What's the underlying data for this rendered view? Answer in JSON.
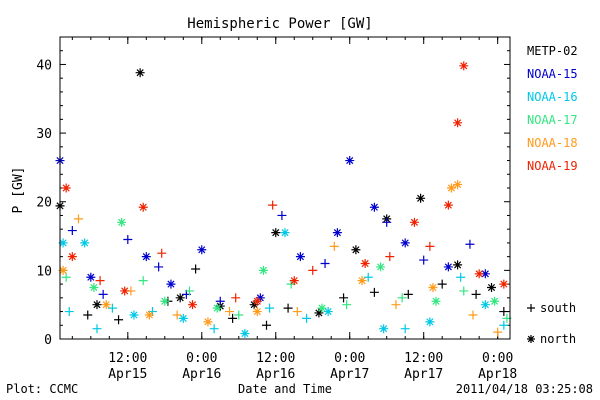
{
  "chart_data": {
    "type": "scatter",
    "title": "Hemispheric Power [GW]",
    "ylabel": "P [GW]",
    "xlabel": "Date and Time",
    "ylim": [
      0,
      44
    ],
    "xlim": [
      "2011-04-15 01:00",
      "2011-04-18 02:00"
    ],
    "y_ticks": [
      0,
      10,
      20,
      30,
      40
    ],
    "x_ticks": [
      {
        "time": "2011-04-15 12:00",
        "line1": "12:00",
        "line2": "Apr15"
      },
      {
        "time": "2011-04-16 00:00",
        "line1": "0:00",
        "line2": "Apr16"
      },
      {
        "time": "2011-04-16 12:00",
        "line1": "12:00",
        "line2": "Apr16"
      },
      {
        "time": "2011-04-17 00:00",
        "line1": "0:00",
        "line2": "Apr17"
      },
      {
        "time": "2011-04-17 12:00",
        "line1": "12:00",
        "line2": "Apr17"
      },
      {
        "time": "2011-04-18 00:00",
        "line1": "0:00",
        "line2": "Apr18"
      }
    ],
    "legend_position": "right",
    "symbol_legend": [
      {
        "symbol": "+",
        "label": "south"
      },
      {
        "symbol": "*",
        "label": "north"
      }
    ],
    "footer_left": "Plot: CCMC",
    "footer_right": "2011/04/18 03:25:08",
    "series": [
      {
        "name": "METP-02",
        "color": "#000000",
        "points": [
          {
            "t": "2011-04-15 01:00",
            "v": 19.4,
            "m": "*"
          },
          {
            "t": "2011-04-15 05:30",
            "v": 3.5,
            "m": "+"
          },
          {
            "t": "2011-04-15 07:00",
            "v": 5.0,
            "m": "*"
          },
          {
            "t": "2011-04-15 10:30",
            "v": 2.8,
            "m": "+"
          },
          {
            "t": "2011-04-15 14:00",
            "v": 38.8,
            "m": "*"
          },
          {
            "t": "2011-04-15 18:30",
            "v": 5.5,
            "m": "+"
          },
          {
            "t": "2011-04-15 20:30",
            "v": 6.0,
            "m": "*"
          },
          {
            "t": "2011-04-15 23:00",
            "v": 10.2,
            "m": "+"
          },
          {
            "t": "2011-04-16 03:00",
            "v": 4.8,
            "m": "*"
          },
          {
            "t": "2011-04-16 05:00",
            "v": 3.0,
            "m": "+"
          },
          {
            "t": "2011-04-16 08:30",
            "v": 5.0,
            "m": "*"
          },
          {
            "t": "2011-04-16 10:30",
            "v": 2.0,
            "m": "+"
          },
          {
            "t": "2011-04-16 12:00",
            "v": 15.5,
            "m": "*"
          },
          {
            "t": "2011-04-16 14:00",
            "v": 4.5,
            "m": "+"
          },
          {
            "t": "2011-04-16 19:00",
            "v": 3.8,
            "m": "*"
          },
          {
            "t": "2011-04-16 23:00",
            "v": 6.0,
            "m": "+"
          },
          {
            "t": "2011-04-17 01:00",
            "v": 13.0,
            "m": "*"
          },
          {
            "t": "2011-04-17 04:00",
            "v": 6.8,
            "m": "+"
          },
          {
            "t": "2011-04-17 06:00",
            "v": 17.5,
            "m": "*"
          },
          {
            "t": "2011-04-17 09:30",
            "v": 6.5,
            "m": "+"
          },
          {
            "t": "2011-04-17 11:30",
            "v": 20.5,
            "m": "*"
          },
          {
            "t": "2011-04-17 15:00",
            "v": 8.0,
            "m": "+"
          },
          {
            "t": "2011-04-17 17:30",
            "v": 10.8,
            "m": "*"
          },
          {
            "t": "2011-04-17 20:30",
            "v": 6.5,
            "m": "+"
          },
          {
            "t": "2011-04-17 23:00",
            "v": 7.5,
            "m": "*"
          },
          {
            "t": "2011-04-18 01:00",
            "v": 4.0,
            "m": "+"
          }
        ]
      },
      {
        "name": "NOAA-15",
        "color": "#0000cc",
        "points": [
          {
            "t": "2011-04-15 01:00",
            "v": 26.0,
            "m": "*"
          },
          {
            "t": "2011-04-15 03:00",
            "v": 15.8,
            "m": "+"
          },
          {
            "t": "2011-04-15 06:00",
            "v": 9.0,
            "m": "*"
          },
          {
            "t": "2011-04-15 08:00",
            "v": 6.5,
            "m": "+"
          },
          {
            "t": "2011-04-15 12:00",
            "v": 14.5,
            "m": "+"
          },
          {
            "t": "2011-04-15 15:00",
            "v": 12.0,
            "m": "*"
          },
          {
            "t": "2011-04-15 17:00",
            "v": 10.5,
            "m": "+"
          },
          {
            "t": "2011-04-15 19:00",
            "v": 8.0,
            "m": "*"
          },
          {
            "t": "2011-04-15 21:30",
            "v": 6.5,
            "m": "+"
          },
          {
            "t": "2011-04-16 00:00",
            "v": 13.0,
            "m": "*"
          },
          {
            "t": "2011-04-16 03:00",
            "v": 5.5,
            "m": "+"
          },
          {
            "t": "2011-04-16 09:30",
            "v": 6.0,
            "m": "*"
          },
          {
            "t": "2011-04-16 13:00",
            "v": 18.0,
            "m": "+"
          },
          {
            "t": "2011-04-16 16:00",
            "v": 12.0,
            "m": "*"
          },
          {
            "t": "2011-04-16 20:00",
            "v": 11.0,
            "m": "+"
          },
          {
            "t": "2011-04-16 22:00",
            "v": 15.5,
            "m": "*"
          },
          {
            "t": "2011-04-17 00:00",
            "v": 26.0,
            "m": "*"
          },
          {
            "t": "2011-04-17 04:00",
            "v": 19.2,
            "m": "*"
          },
          {
            "t": "2011-04-17 06:00",
            "v": 17.0,
            "m": "+"
          },
          {
            "t": "2011-04-17 09:00",
            "v": 14.0,
            "m": "*"
          },
          {
            "t": "2011-04-17 12:00",
            "v": 11.5,
            "m": "+"
          },
          {
            "t": "2011-04-17 16:00",
            "v": 10.5,
            "m": "*"
          },
          {
            "t": "2011-04-17 19:30",
            "v": 13.8,
            "m": "+"
          },
          {
            "t": "2011-04-17 22:00",
            "v": 9.5,
            "m": "*"
          }
        ]
      },
      {
        "name": "NOAA-16",
        "color": "#00c8e6",
        "points": [
          {
            "t": "2011-04-15 01:30",
            "v": 14.0,
            "m": "*"
          },
          {
            "t": "2011-04-15 02:30",
            "v": 4.0,
            "m": "+"
          },
          {
            "t": "2011-04-15 05:00",
            "v": 14.0,
            "m": "*"
          },
          {
            "t": "2011-04-15 07:00",
            "v": 1.5,
            "m": "+"
          },
          {
            "t": "2011-04-15 09:30",
            "v": 4.5,
            "m": "+"
          },
          {
            "t": "2011-04-15 13:00",
            "v": 3.5,
            "m": "*"
          },
          {
            "t": "2011-04-15 16:00",
            "v": 4.0,
            "m": "+"
          },
          {
            "t": "2011-04-15 21:00",
            "v": 3.0,
            "m": "*"
          },
          {
            "t": "2011-04-16 02:00",
            "v": 1.5,
            "m": "+"
          },
          {
            "t": "2011-04-16 07:00",
            "v": 0.8,
            "m": "*"
          },
          {
            "t": "2011-04-16 11:00",
            "v": 4.5,
            "m": "+"
          },
          {
            "t": "2011-04-16 13:30",
            "v": 15.5,
            "m": "*"
          },
          {
            "t": "2011-04-16 17:00",
            "v": 3.0,
            "m": "+"
          },
          {
            "t": "2011-04-16 20:30",
            "v": 4.0,
            "m": "*"
          },
          {
            "t": "2011-04-17 03:00",
            "v": 9.0,
            "m": "+"
          },
          {
            "t": "2011-04-17 05:30",
            "v": 1.5,
            "m": "*"
          },
          {
            "t": "2011-04-17 09:00",
            "v": 1.5,
            "m": "+"
          },
          {
            "t": "2011-04-17 13:00",
            "v": 2.5,
            "m": "*"
          },
          {
            "t": "2011-04-17 18:00",
            "v": 9.0,
            "m": "+"
          },
          {
            "t": "2011-04-17 22:00",
            "v": 5.0,
            "m": "*"
          },
          {
            "t": "2011-04-18 01:00",
            "v": 2.0,
            "m": "+"
          }
        ]
      },
      {
        "name": "NOAA-17",
        "color": "#33e680",
        "points": [
          {
            "t": "2011-04-15 02:00",
            "v": 9.0,
            "m": "+"
          },
          {
            "t": "2011-04-15 06:30",
            "v": 7.5,
            "m": "*"
          },
          {
            "t": "2011-04-15 11:00",
            "v": 17.0,
            "m": "*"
          },
          {
            "t": "2011-04-15 14:30",
            "v": 8.5,
            "m": "+"
          },
          {
            "t": "2011-04-15 18:00",
            "v": 5.5,
            "m": "*"
          },
          {
            "t": "2011-04-15 22:00",
            "v": 7.0,
            "m": "+"
          },
          {
            "t": "2011-04-16 02:30",
            "v": 4.5,
            "m": "*"
          },
          {
            "t": "2011-04-16 06:00",
            "v": 3.5,
            "m": "+"
          },
          {
            "t": "2011-04-16 10:00",
            "v": 10.0,
            "m": "*"
          },
          {
            "t": "2011-04-16 14:30",
            "v": 8.0,
            "m": "+"
          },
          {
            "t": "2011-04-16 19:30",
            "v": 4.5,
            "m": "*"
          },
          {
            "t": "2011-04-16 23:30",
            "v": 5.0,
            "m": "+"
          },
          {
            "t": "2011-04-17 05:00",
            "v": 10.5,
            "m": "*"
          },
          {
            "t": "2011-04-17 08:30",
            "v": 6.0,
            "m": "+"
          },
          {
            "t": "2011-04-17 14:00",
            "v": 5.5,
            "m": "*"
          },
          {
            "t": "2011-04-17 18:30",
            "v": 7.0,
            "m": "+"
          },
          {
            "t": "2011-04-17 23:30",
            "v": 5.5,
            "m": "*"
          },
          {
            "t": "2011-04-18 01:30",
            "v": 3.0,
            "m": "+"
          }
        ]
      },
      {
        "name": "NOAA-18",
        "color": "#ff9a1a",
        "points": [
          {
            "t": "2011-04-15 01:30",
            "v": 10.0,
            "m": "*"
          },
          {
            "t": "2011-04-15 04:00",
            "v": 17.5,
            "m": "+"
          },
          {
            "t": "2011-04-15 08:30",
            "v": 5.0,
            "m": "*"
          },
          {
            "t": "2011-04-15 12:30",
            "v": 7.0,
            "m": "+"
          },
          {
            "t": "2011-04-15 15:30",
            "v": 3.5,
            "m": "*"
          },
          {
            "t": "2011-04-15 20:00",
            "v": 3.5,
            "m": "+"
          },
          {
            "t": "2011-04-16 01:00",
            "v": 2.5,
            "m": "*"
          },
          {
            "t": "2011-04-16 04:30",
            "v": 4.0,
            "m": "+"
          },
          {
            "t": "2011-04-16 09:00",
            "v": 4.0,
            "m": "*"
          },
          {
            "t": "2011-04-16 15:30",
            "v": 4.0,
            "m": "+"
          },
          {
            "t": "2011-04-16 21:30",
            "v": 13.5,
            "m": "+"
          },
          {
            "t": "2011-04-17 02:00",
            "v": 8.5,
            "m": "*"
          },
          {
            "t": "2011-04-17 07:30",
            "v": 5.0,
            "m": "+"
          },
          {
            "t": "2011-04-17 13:30",
            "v": 7.5,
            "m": "*"
          },
          {
            "t": "2011-04-17 16:30",
            "v": 22.0,
            "m": "*"
          },
          {
            "t": "2011-04-17 17:30",
            "v": 22.5,
            "m": "*"
          },
          {
            "t": "2011-04-17 20:00",
            "v": 3.5,
            "m": "+"
          },
          {
            "t": "2011-04-18 00:00",
            "v": 1.0,
            "m": "+"
          }
        ]
      },
      {
        "name": "NOAA-19",
        "color": "#ee2200",
        "points": [
          {
            "t": "2011-04-15 02:00",
            "v": 22.0,
            "m": "*"
          },
          {
            "t": "2011-04-15 03:00",
            "v": 12.0,
            "m": "*"
          },
          {
            "t": "2011-04-15 07:30",
            "v": 8.5,
            "m": "+"
          },
          {
            "t": "2011-04-15 11:30",
            "v": 7.0,
            "m": "*"
          },
          {
            "t": "2011-04-15 14:30",
            "v": 19.2,
            "m": "*"
          },
          {
            "t": "2011-04-15 17:30",
            "v": 12.5,
            "m": "+"
          },
          {
            "t": "2011-04-15 22:30",
            "v": 5.0,
            "m": "*"
          },
          {
            "t": "2011-04-16 05:30",
            "v": 6.0,
            "m": "+"
          },
          {
            "t": "2011-04-16 09:00",
            "v": 5.5,
            "m": "*"
          },
          {
            "t": "2011-04-16 11:30",
            "v": 19.5,
            "m": "+"
          },
          {
            "t": "2011-04-16 15:00",
            "v": 8.5,
            "m": "*"
          },
          {
            "t": "2011-04-16 18:00",
            "v": 10.0,
            "m": "+"
          },
          {
            "t": "2011-04-17 02:30",
            "v": 11.0,
            "m": "*"
          },
          {
            "t": "2011-04-17 06:30",
            "v": 12.0,
            "m": "+"
          },
          {
            "t": "2011-04-17 10:30",
            "v": 17.0,
            "m": "*"
          },
          {
            "t": "2011-04-17 13:00",
            "v": 13.5,
            "m": "+"
          },
          {
            "t": "2011-04-17 16:00",
            "v": 19.5,
            "m": "*"
          },
          {
            "t": "2011-04-17 17:30",
            "v": 31.5,
            "m": "*"
          },
          {
            "t": "2011-04-17 18:30",
            "v": 39.8,
            "m": "*"
          },
          {
            "t": "2011-04-17 21:00",
            "v": 9.5,
            "m": "*"
          },
          {
            "t": "2011-04-18 01:00",
            "v": 8.0,
            "m": "*"
          }
        ]
      }
    ]
  }
}
